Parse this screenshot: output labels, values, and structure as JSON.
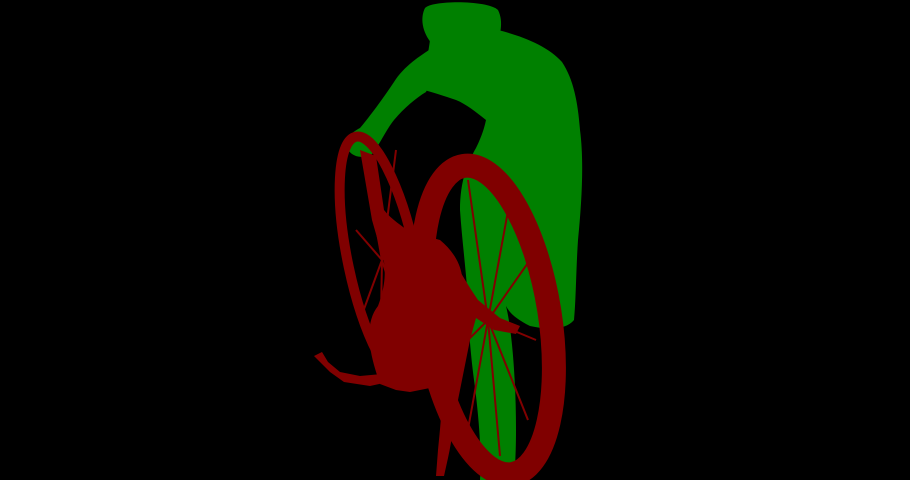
{
  "image": {
    "kind": "segmentation-mask",
    "background_color": "#000000",
    "regions": [
      {
        "name": "person",
        "color": "#008000"
      },
      {
        "name": "bicycle",
        "color": "#800000"
      }
    ]
  }
}
